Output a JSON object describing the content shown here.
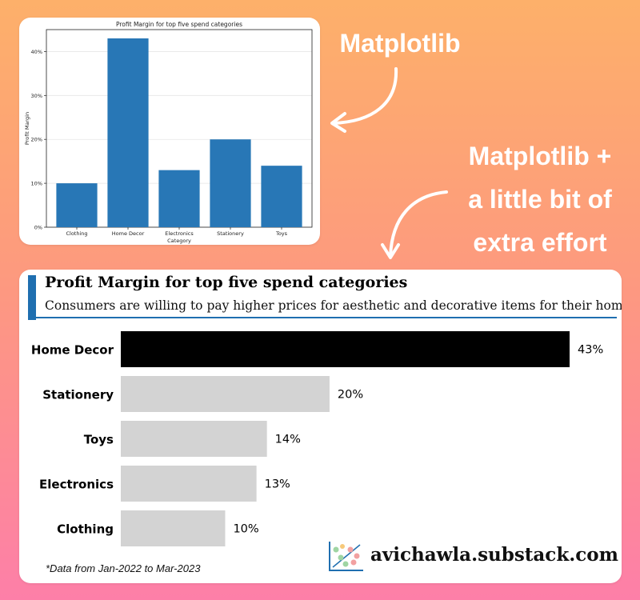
{
  "callouts": {
    "first": "Matplotlib",
    "second_lines": [
      "Matplotlib +",
      "a little bit of",
      "extra effort"
    ]
  },
  "chart_data": [
    {
      "type": "bar",
      "title": "Profit Margin for top five spend categories",
      "xlabel": "Category",
      "ylabel": "Profit Margin",
      "categories": [
        "Clothing",
        "Home Decor",
        "Electronics",
        "Stationery",
        "Toys"
      ],
      "values": [
        10,
        43,
        13,
        20,
        14
      ],
      "ylim": [
        0,
        45
      ],
      "yticks": [
        "0%",
        "10%",
        "20%",
        "30%",
        "40%"
      ],
      "grid": "horizontal",
      "colors": {
        "bar": "#2877b6"
      }
    },
    {
      "type": "bar",
      "orientation": "horizontal",
      "title": "Profit Margin for top five spend categories",
      "subtitle": "Consumers are willing to pay higher prices for aesthetic and decorative items for their home.",
      "categories": [
        "Home Decor",
        "Stationery",
        "Toys",
        "Electronics",
        "Clothing"
      ],
      "values": [
        43,
        20,
        14,
        13,
        10
      ],
      "value_labels": [
        "43%",
        "20%",
        "14%",
        "13%",
        "10%"
      ],
      "highlight": "Home Decor",
      "colors": {
        "highlight": "#000000",
        "other": "#d3d3d3",
        "accent": "#1f6fb0"
      },
      "footnote": "*Data from Jan-2022 to Mar-2023"
    }
  ],
  "brand": "avichawla.substack.com"
}
